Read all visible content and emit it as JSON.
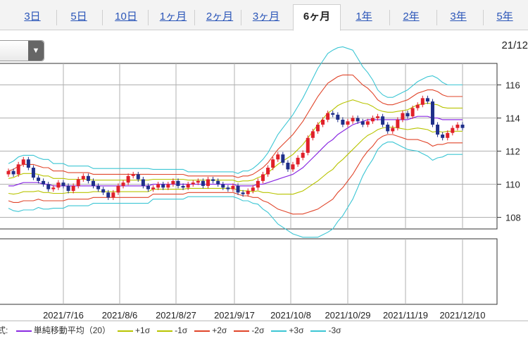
{
  "tabs": [
    "3日",
    "5日",
    "10日",
    "1ヶ月",
    "2ヶ月",
    "3ヶ月",
    "6ヶ月",
    "1年",
    "2年",
    "3年",
    "5年"
  ],
  "active_tab": "6ヶ月",
  "date_range_label": "21/12",
  "select_arrow": "▼",
  "colors": {
    "up": "#e0202a",
    "down": "#1f2f8a",
    "ma": "#8a2be2",
    "s1": "#b8c400",
    "s2": "#e0452a",
    "s3": "#3cc6d4",
    "grid": "#b0b0b0"
  },
  "legend": {
    "prefix": "式:",
    "items": [
      {
        "label": "単純移動平均（20）",
        "color": "#8a2be2"
      },
      {
        "label": "+1σ",
        "color": "#b8c400"
      },
      {
        "label": "-1σ",
        "color": "#b8c400"
      },
      {
        "label": "+2σ",
        "color": "#e0452a"
      },
      {
        "label": "-2σ",
        "color": "#e0452a"
      },
      {
        "label": "+3σ",
        "color": "#3cc6d4"
      },
      {
        "label": "-3σ",
        "color": "#3cc6d4"
      }
    ]
  },
  "chart_data": {
    "type": "candlestick",
    "x_tick_labels": [
      "2021/7/16",
      "2021/8/6",
      "2021/8/27",
      "2021/9/17",
      "2021/10/8",
      "2021/10/29",
      "2021/11/19",
      "2021/12/10"
    ],
    "y_ticks": [
      108,
      110,
      112,
      114,
      116
    ],
    "ylim": [
      107.3,
      117.3
    ],
    "grid": true,
    "closes": [
      110.8,
      110.6,
      111.2,
      111.5,
      111.0,
      110.4,
      110.2,
      110.0,
      109.7,
      109.8,
      110.1,
      109.9,
      109.6,
      109.9,
      110.3,
      110.5,
      110.2,
      109.9,
      109.7,
      109.5,
      109.2,
      109.5,
      109.9,
      110.1,
      110.5,
      110.6,
      110.3,
      109.9,
      109.7,
      109.8,
      110.0,
      109.8,
      110.0,
      110.2,
      109.9,
      109.8,
      110.0,
      110.1,
      110.2,
      109.9,
      110.3,
      110.2,
      110.0,
      109.8,
      109.7,
      109.9,
      109.5,
      109.4,
      109.6,
      109.8,
      110.2,
      110.6,
      111.0,
      111.5,
      111.8,
      111.3,
      110.9,
      111.2,
      111.6,
      111.9,
      112.8,
      113.2,
      113.6,
      113.9,
      114.3,
      114.2,
      113.9,
      113.6,
      113.8,
      114.0,
      113.8,
      113.6,
      113.8,
      114.0,
      114.1,
      113.6,
      113.2,
      113.4,
      113.9,
      114.3,
      114.1,
      114.6,
      114.8,
      115.2,
      115.0,
      113.6,
      113.0,
      112.8,
      113.1,
      113.4,
      113.6,
      113.4
    ],
    "series": [
      {
        "name": "単純移動平均（20）",
        "values": [
          109.9,
          109.9,
          110.0,
          110.1,
          110.1,
          110.1,
          110.1,
          110.0,
          110.0,
          109.9,
          109.9,
          109.9,
          109.9,
          109.9,
          109.9,
          109.9,
          109.9,
          109.9,
          109.9,
          109.9,
          109.9,
          109.9,
          109.9,
          109.9,
          109.9,
          109.9,
          109.9,
          109.9,
          109.9,
          110.0,
          110.0,
          110.0,
          110.0,
          110.0,
          110.0,
          110.0,
          110.0,
          110.0,
          110.0,
          110.0,
          110.0,
          110.0,
          110.0,
          110.0,
          110.0,
          110.0,
          109.9,
          109.9,
          109.9,
          109.9,
          110.0,
          110.0,
          110.1,
          110.2,
          110.3,
          110.4,
          110.5,
          110.6,
          110.8,
          111.0,
          111.3,
          111.6,
          111.9,
          112.2,
          112.5,
          112.7,
          113.0,
          113.2,
          113.4,
          113.6,
          113.7,
          113.8,
          113.9,
          113.9,
          113.9,
          113.9,
          113.9,
          113.9,
          113.9,
          113.9,
          113.9,
          114.0,
          114.1,
          114.1,
          114.1,
          114.0,
          114.0,
          113.9,
          113.9,
          113.9,
          113.9,
          113.9
        ]
      }
    ],
    "band_sigma": [
      0.45,
      0.5,
      0.55,
      0.55,
      0.55,
      0.55,
      0.5,
      0.5,
      0.5,
      0.45,
      0.45,
      0.45,
      0.4,
      0.4,
      0.4,
      0.4,
      0.4,
      0.35,
      0.35,
      0.35,
      0.35,
      0.35,
      0.35,
      0.35,
      0.35,
      0.35,
      0.35,
      0.35,
      0.35,
      0.3,
      0.3,
      0.3,
      0.3,
      0.3,
      0.3,
      0.3,
      0.25,
      0.25,
      0.25,
      0.25,
      0.25,
      0.25,
      0.25,
      0.25,
      0.25,
      0.25,
      0.25,
      0.3,
      0.3,
      0.35,
      0.4,
      0.5,
      0.6,
      0.75,
      0.9,
      1.0,
      1.1,
      1.2,
      1.3,
      1.4,
      1.5,
      1.6,
      1.7,
      1.75,
      1.8,
      1.8,
      1.75,
      1.7,
      1.6,
      1.5,
      1.3,
      1.1,
      0.95,
      0.8,
      0.6,
      0.5,
      0.45,
      0.45,
      0.5,
      0.55,
      0.6,
      0.65,
      0.7,
      0.75,
      0.8,
      0.85,
      0.8,
      0.75,
      0.7,
      0.7,
      0.7,
      0.7
    ]
  }
}
